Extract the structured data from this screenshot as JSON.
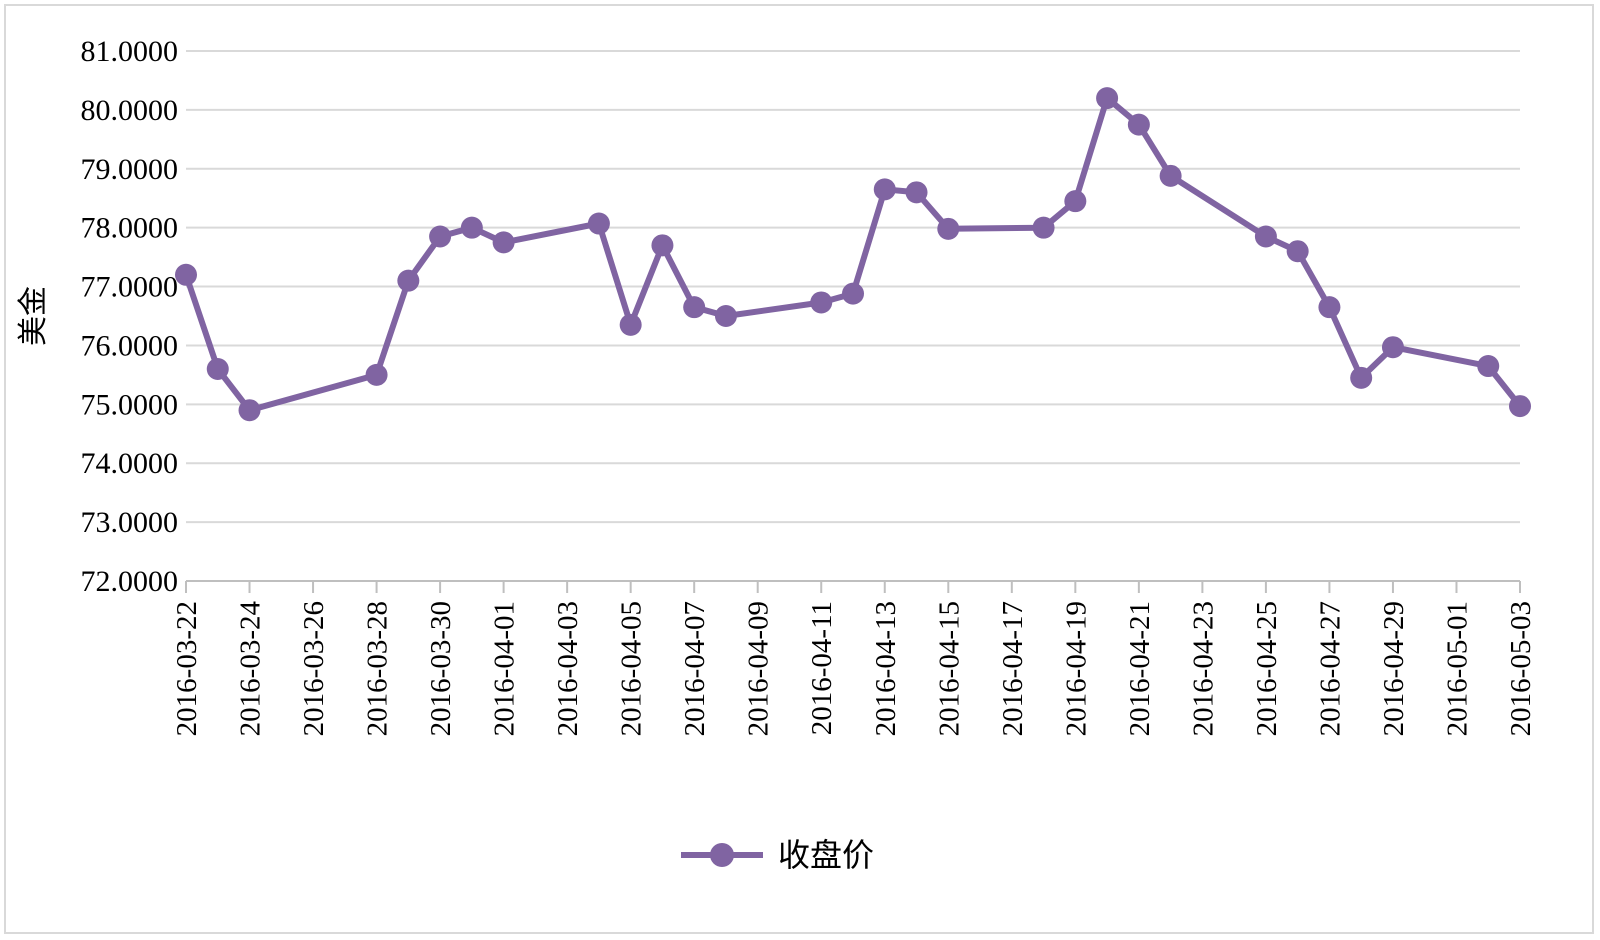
{
  "chart_data": {
    "type": "line",
    "ylabel": "美金",
    "ylim": [
      72,
      81
    ],
    "y_ticks": [
      "72.0000",
      "73.0000",
      "74.0000",
      "75.0000",
      "76.0000",
      "77.0000",
      "78.0000",
      "79.0000",
      "80.0000",
      "81.0000"
    ],
    "x_range": [
      "2016-03-22",
      "2016-05-03"
    ],
    "x_ticks": [
      "2016-03-22",
      "2016-03-24",
      "2016-03-26",
      "2016-03-28",
      "2016-03-30",
      "2016-04-01",
      "2016-04-03",
      "2016-04-05",
      "2016-04-07",
      "2016-04-09",
      "2016-04-11",
      "2016-04-13",
      "2016-04-15",
      "2016-04-17",
      "2016-04-19",
      "2016-04-21",
      "2016-04-23",
      "2016-04-25",
      "2016-04-27",
      "2016-04-29",
      "2016-05-01",
      "2016-05-03"
    ],
    "grid": true,
    "legend_position": "bottom",
    "colors": {
      "series": "#8064a2",
      "grid": "#d9d9d9",
      "axis": "#bfbfbf"
    },
    "series": [
      {
        "name": "收盘价",
        "points": [
          {
            "x": "2016-03-22",
            "y": 77.2
          },
          {
            "x": "2016-03-23",
            "y": 75.6
          },
          {
            "x": "2016-03-24",
            "y": 74.9
          },
          {
            "x": "2016-03-28",
            "y": 75.5
          },
          {
            "x": "2016-03-29",
            "y": 77.1
          },
          {
            "x": "2016-03-30",
            "y": 77.85
          },
          {
            "x": "2016-03-31",
            "y": 78.0
          },
          {
            "x": "2016-04-01",
            "y": 77.75
          },
          {
            "x": "2016-04-04",
            "y": 78.07
          },
          {
            "x": "2016-04-05",
            "y": 76.35
          },
          {
            "x": "2016-04-06",
            "y": 77.7
          },
          {
            "x": "2016-04-07",
            "y": 76.65
          },
          {
            "x": "2016-04-08",
            "y": 76.5
          },
          {
            "x": "2016-04-11",
            "y": 76.73
          },
          {
            "x": "2016-04-12",
            "y": 76.88
          },
          {
            "x": "2016-04-13",
            "y": 78.65
          },
          {
            "x": "2016-04-14",
            "y": 78.6
          },
          {
            "x": "2016-04-15",
            "y": 77.98
          },
          {
            "x": "2016-04-18",
            "y": 78.0
          },
          {
            "x": "2016-04-19",
            "y": 78.45
          },
          {
            "x": "2016-04-20",
            "y": 80.2
          },
          {
            "x": "2016-04-21",
            "y": 79.75
          },
          {
            "x": "2016-04-22",
            "y": 78.88
          },
          {
            "x": "2016-04-25",
            "y": 77.85
          },
          {
            "x": "2016-04-26",
            "y": 77.6
          },
          {
            "x": "2016-04-27",
            "y": 76.65
          },
          {
            "x": "2016-04-28",
            "y": 75.45
          },
          {
            "x": "2016-04-29",
            "y": 75.97
          },
          {
            "x": "2016-05-02",
            "y": 75.65
          },
          {
            "x": "2016-05-03",
            "y": 74.97
          }
        ]
      }
    ]
  }
}
